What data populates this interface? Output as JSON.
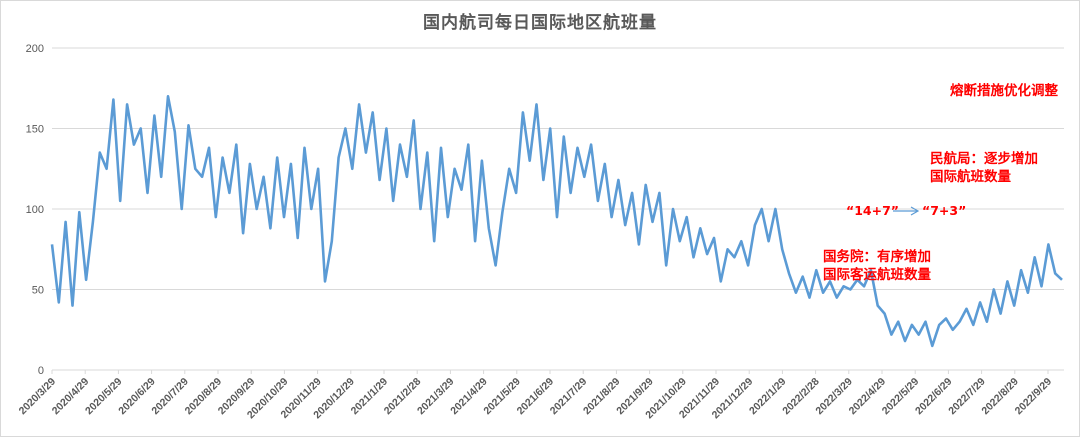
{
  "chart_data": {
    "type": "line",
    "title": "国内航司每日国际地区航班量",
    "xlabel": "",
    "ylabel": "",
    "ylim": [
      0,
      200
    ],
    "yticks": [
      0,
      50,
      100,
      150,
      200
    ],
    "grid": true,
    "legend": "none",
    "line_color": "#5b9bd5",
    "categories": [
      "2020/3/29",
      "2020/4/29",
      "2020/5/29",
      "2020/6/29",
      "2020/7/29",
      "2020/8/29",
      "2020/9/29",
      "2020/10/29",
      "2020/11/29",
      "2020/12/29",
      "2021/1/29",
      "2021/2/28",
      "2021/3/29",
      "2021/4/29",
      "2021/5/29",
      "2021/6/29",
      "2021/7/29",
      "2021/8/29",
      "2021/9/29",
      "2021/10/29",
      "2021/11/29",
      "2021/12/29",
      "2022/1/29",
      "2022/2/28",
      "2022/3/29",
      "2022/4/29",
      "2022/5/29",
      "2022/6/29",
      "2022/7/29",
      "2022/8/29",
      "2022/9/29"
    ],
    "series": [
      {
        "name": "国内航司每日国际地区航班量",
        "sampling": "approx. weekly readings of the daily series (values oscillate strongly day-to-day)",
        "values": [
          78,
          42,
          92,
          40,
          98,
          56,
          92,
          135,
          125,
          168,
          105,
          165,
          140,
          150,
          110,
          158,
          120,
          170,
          148,
          100,
          152,
          125,
          120,
          138,
          95,
          132,
          110,
          140,
          85,
          128,
          100,
          120,
          88,
          132,
          95,
          128,
          82,
          138,
          100,
          125,
          55,
          80,
          132,
          150,
          125,
          165,
          135,
          160,
          118,
          150,
          105,
          140,
          120,
          155,
          100,
          135,
          80,
          138,
          95,
          125,
          112,
          140,
          80,
          130,
          88,
          65,
          98,
          125,
          110,
          160,
          130,
          165,
          118,
          150,
          95,
          145,
          110,
          138,
          120,
          140,
          105,
          128,
          95,
          118,
          90,
          110,
          78,
          115,
          92,
          110,
          65,
          100,
          80,
          95,
          70,
          88,
          72,
          82,
          55,
          75,
          70,
          80,
          65,
          90,
          100,
          80,
          100,
          75,
          60,
          48,
          58,
          45,
          62,
          48,
          55,
          45,
          52,
          50,
          56,
          52,
          62,
          40,
          35,
          22,
          30,
          18,
          28,
          22,
          30,
          15,
          28,
          32,
          25,
          30,
          38,
          28,
          42,
          30,
          50,
          35,
          55,
          40,
          62,
          48,
          70,
          52,
          78,
          60,
          56
        ]
      }
    ],
    "annotations": [
      {
        "text": "熔断措施优化调整",
        "color": "#ff0000"
      },
      {
        "text": "民航局：逐步增加\n国际航班数量",
        "color": "#ff0000"
      },
      {
        "text": "“14+7”",
        "color": "#ff0000"
      },
      {
        "text": "“7+3”",
        "color": "#ff0000"
      },
      {
        "text": "国务院：有序增加\n国际客运航班数量",
        "color": "#ff0000"
      }
    ],
    "arrow_color": "#5b9bd5"
  }
}
